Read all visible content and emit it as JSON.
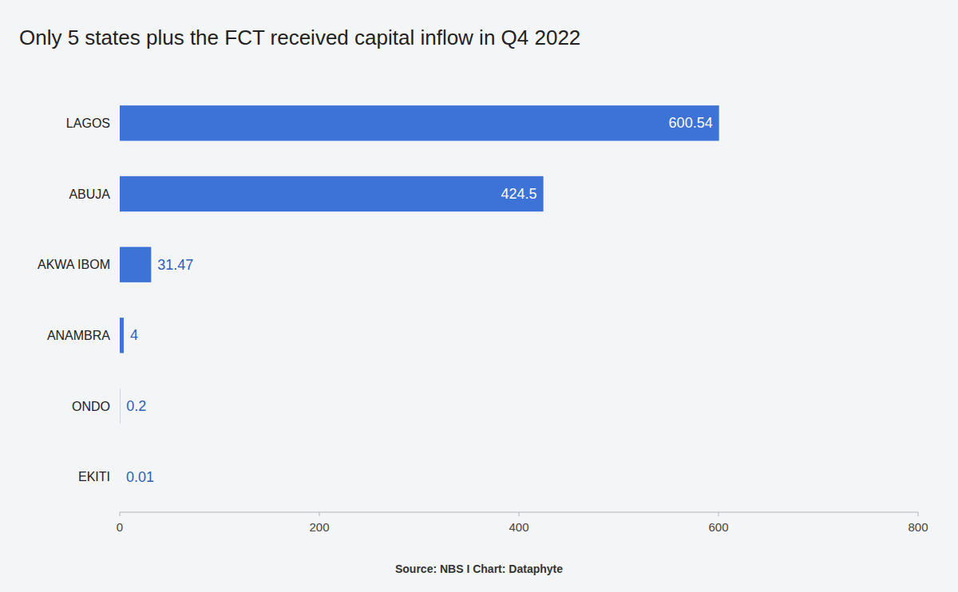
{
  "chart_data": {
    "type": "bar",
    "orientation": "horizontal",
    "title": "Only 5 states plus the FCT received capital inflow in Q4 2022",
    "categories": [
      "LAGOS",
      "ABUJA",
      "AKWA IBOM",
      "ANAMBRA",
      "ONDO",
      "EKITI"
    ],
    "values": [
      600.54,
      424.5,
      31.47,
      4,
      0.2,
      0.01
    ],
    "color": "#3d72d7",
    "xlim": [
      0,
      800
    ],
    "xticks": [
      0,
      200,
      400,
      600,
      800
    ],
    "grid": false,
    "data_labels": true,
    "source": "Source: NBS I Chart: Dataphyte"
  }
}
